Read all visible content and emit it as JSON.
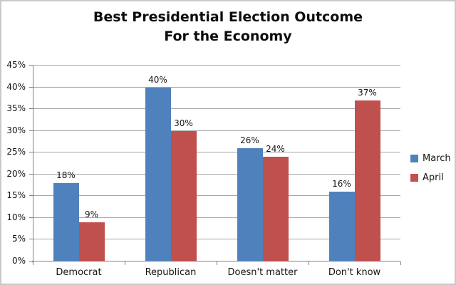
{
  "chart_data": {
    "type": "bar",
    "title": "Best Presidential Election Outcome For the Economy",
    "title_lines": [
      "Best Presidential Election Outcome",
      "For the Economy"
    ],
    "categories": [
      "Democrat",
      "Republican",
      "Doesn't matter",
      "Don't know"
    ],
    "series": [
      {
        "name": "March",
        "color": "#4F81BD",
        "values": [
          18,
          40,
          26,
          16
        ]
      },
      {
        "name": "April",
        "color": "#C0504D",
        "values": [
          9,
          30,
          24,
          37
        ]
      }
    ],
    "ylim": [
      0,
      45
    ],
    "ytick_step": 5,
    "ytick_suffix": "%",
    "data_label_suffix": "%",
    "grid": true,
    "legend_position": "right",
    "colors": {
      "gridline": "#a6a6a6",
      "axis": "#808080",
      "text": "#141414",
      "background": "#ffffff",
      "frame_border": "#c9c9c9"
    }
  }
}
